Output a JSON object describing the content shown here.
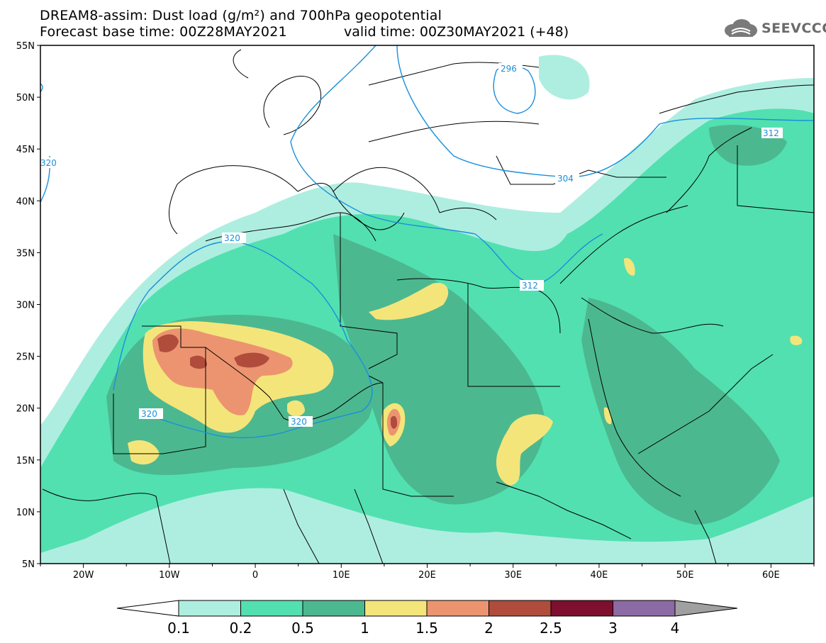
{
  "header": {
    "title_line1": "DREAM8-assim: Dust load (g/m²) and 700hPa geopotential",
    "title_line2": "Forecast base time: 00Z28MAY2021",
    "valid_time": "valid time: 00Z30MAY2021 (+48)"
  },
  "logo": {
    "text": "SEEVCCC",
    "icon": "cloud-icon"
  },
  "map": {
    "lon_labels": [
      "20W",
      "10W",
      "0",
      "10E",
      "20E",
      "30E",
      "40E",
      "50E",
      "60E"
    ],
    "lat_labels": [
      "55N",
      "50N",
      "45N",
      "40N",
      "35N",
      "30N",
      "25N",
      "20N",
      "15N",
      "10N",
      "5N"
    ],
    "contour_labels": [
      "296",
      "304",
      "312",
      "312",
      "320",
      "320",
      "320",
      "320"
    ],
    "geopotential_color": "#1a8fdc"
  },
  "colorbar": {
    "colors": [
      "#ffffff",
      "#aeeee0",
      "#52e0b0",
      "#4cb890",
      "#f4e57a",
      "#ec9470",
      "#b04c3c",
      "#7e0f2e",
      "#8c6aa3",
      "#a0a0a0"
    ],
    "tick_labels": [
      "0.1",
      "0.2",
      "0.5",
      "1",
      "1.5",
      "2",
      "2.5",
      "3",
      "4"
    ]
  }
}
